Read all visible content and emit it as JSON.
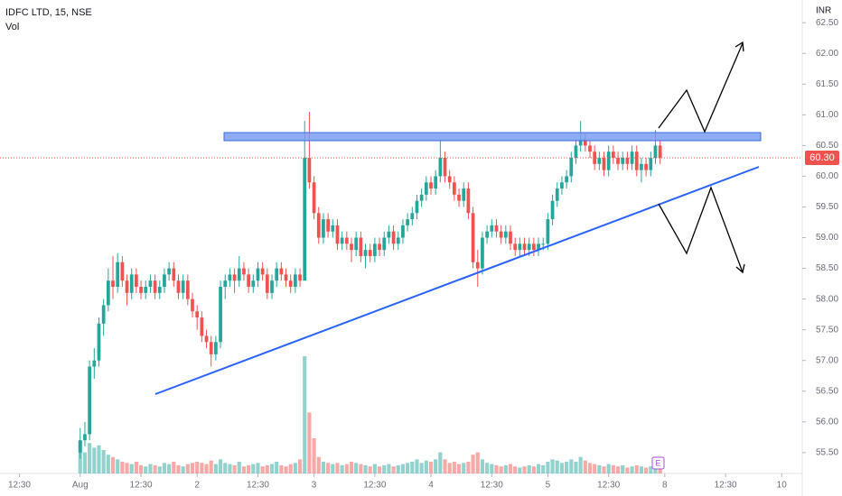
{
  "chart_data": {
    "type": "candlestick",
    "title": "IDFC LTD, 15, NSE",
    "volume_label": "Vol",
    "currency": "INR",
    "event_marker": "E",
    "up_color": "#26a69a",
    "down_color": "#ef5350",
    "ylim": [
      55.16,
      62.87
    ],
    "xlim": [
      -17.15,
      154.4
    ],
    "yticks": [
      {
        "value": 62.5,
        "label": "62.50"
      },
      {
        "value": 62,
        "label": "62.00"
      },
      {
        "value": 61.5,
        "label": "61.50"
      },
      {
        "value": 61,
        "label": "61.00"
      },
      {
        "value": 60.5,
        "label": "60.50"
      },
      {
        "value": 60,
        "label": "60.00"
      },
      {
        "value": 59.5,
        "label": "59.50"
      },
      {
        "value": 59,
        "label": "59.00"
      },
      {
        "value": 58.5,
        "label": "58.50"
      },
      {
        "value": 58,
        "label": "58.00"
      },
      {
        "value": 57.5,
        "label": "57.50"
      },
      {
        "value": 57,
        "label": "57.00"
      },
      {
        "value": 56.5,
        "label": "56.50"
      },
      {
        "value": 56,
        "label": "56.00"
      },
      {
        "value": 55.5,
        "label": "55.50"
      }
    ],
    "xticks": [
      {
        "value": -13,
        "label": "12:30"
      },
      {
        "value": 0,
        "label": "Aug"
      },
      {
        "value": 13,
        "label": "12:30"
      },
      {
        "value": 25,
        "label": "2"
      },
      {
        "value": 38,
        "label": "12:30"
      },
      {
        "value": 50,
        "label": "3"
      },
      {
        "value": 63,
        "label": "12:30"
      },
      {
        "value": 75,
        "label": "4"
      },
      {
        "value": 88,
        "label": "12:30"
      },
      {
        "value": 100,
        "label": "5"
      },
      {
        "value": 113,
        "label": "12:30"
      },
      {
        "value": 125,
        "label": "8"
      },
      {
        "value": 138,
        "label": "12:30"
      },
      {
        "value": 150,
        "label": "10"
      }
    ],
    "last_price": {
      "value": 60.3,
      "label": "60.30"
    },
    "candles": [
      [
        55.5,
        55.9,
        55.4,
        55.7
      ],
      [
        55.7,
        56.0,
        55.6,
        55.8
      ],
      [
        55.8,
        57.0,
        55.7,
        56.9
      ],
      [
        56.9,
        57.2,
        56.7,
        57.0
      ],
      [
        57.0,
        57.7,
        56.9,
        57.6
      ],
      [
        57.6,
        58.0,
        57.4,
        57.9
      ],
      [
        57.9,
        58.5,
        57.8,
        58.3
      ],
      [
        58.3,
        58.7,
        58.0,
        58.2
      ],
      [
        58.2,
        58.75,
        58.1,
        58.6
      ],
      [
        58.6,
        58.7,
        58.2,
        58.3
      ],
      [
        58.3,
        58.4,
        57.9,
        58.1
      ],
      [
        58.1,
        58.5,
        58.0,
        58.4
      ],
      [
        58.4,
        58.5,
        58.1,
        58.2
      ],
      [
        58.2,
        58.3,
        58.0,
        58.1
      ],
      [
        58.1,
        58.3,
        58.0,
        58.2
      ],
      [
        58.2,
        58.4,
        58.1,
        58.3
      ],
      [
        58.3,
        58.4,
        58.0,
        58.1
      ],
      [
        58.1,
        58.3,
        58.0,
        58.2
      ],
      [
        58.2,
        58.5,
        58.1,
        58.4
      ],
      [
        58.4,
        58.6,
        58.3,
        58.5
      ],
      [
        58.5,
        58.6,
        58.2,
        58.3
      ],
      [
        58.3,
        58.4,
        58.0,
        58.1
      ],
      [
        58.1,
        58.4,
        58.0,
        58.3
      ],
      [
        58.3,
        58.4,
        57.9,
        58.0
      ],
      [
        58.0,
        58.1,
        57.7,
        57.8
      ],
      [
        57.8,
        57.9,
        57.5,
        57.7
      ],
      [
        57.7,
        57.8,
        57.3,
        57.4
      ],
      [
        57.4,
        57.5,
        57.2,
        57.3
      ],
      [
        57.3,
        57.4,
        56.9,
        57.1
      ],
      [
        57.1,
        57.4,
        57.0,
        57.3
      ],
      [
        57.3,
        58.3,
        57.2,
        58.2
      ],
      [
        58.2,
        58.4,
        58.0,
        58.3
      ],
      [
        58.3,
        58.5,
        58.2,
        58.4
      ],
      [
        58.4,
        58.5,
        58.1,
        58.3
      ],
      [
        58.3,
        58.7,
        58.2,
        58.5
      ],
      [
        58.5,
        58.6,
        58.3,
        58.4
      ],
      [
        58.4,
        58.5,
        58.1,
        58.2
      ],
      [
        58.2,
        58.4,
        58.1,
        58.3
      ],
      [
        58.3,
        58.6,
        58.2,
        58.5
      ],
      [
        58.5,
        58.6,
        58.3,
        58.4
      ],
      [
        58.4,
        58.5,
        58.0,
        58.1
      ],
      [
        58.1,
        58.4,
        58.0,
        58.3
      ],
      [
        58.3,
        58.6,
        58.2,
        58.5
      ],
      [
        58.5,
        58.6,
        58.3,
        58.4
      ],
      [
        58.4,
        58.5,
        58.2,
        58.3
      ],
      [
        58.3,
        58.4,
        58.1,
        58.2
      ],
      [
        58.2,
        58.5,
        58.1,
        58.4
      ],
      [
        58.4,
        58.5,
        58.2,
        58.3
      ],
      [
        58.3,
        60.9,
        58.3,
        60.3
      ],
      [
        60.3,
        61.05,
        59.8,
        59.9
      ],
      [
        59.9,
        60.0,
        59.3,
        59.4
      ],
      [
        59.4,
        59.5,
        58.9,
        59.0
      ],
      [
        59.0,
        59.4,
        58.9,
        59.3
      ],
      [
        59.3,
        59.4,
        59.0,
        59.1
      ],
      [
        59.1,
        59.3,
        59.0,
        59.2
      ],
      [
        59.2,
        59.3,
        58.8,
        58.9
      ],
      [
        58.9,
        59.1,
        58.8,
        59.0
      ],
      [
        59.0,
        59.1,
        58.8,
        58.9
      ],
      [
        58.9,
        59.0,
        58.6,
        58.8
      ],
      [
        58.8,
        59.1,
        58.7,
        59.0
      ],
      [
        59.0,
        59.1,
        58.6,
        58.7
      ],
      [
        58.7,
        58.9,
        58.5,
        58.8
      ],
      [
        58.8,
        58.9,
        58.6,
        58.7
      ],
      [
        58.7,
        59.0,
        58.6,
        58.9
      ],
      [
        58.9,
        59.0,
        58.7,
        58.8
      ],
      [
        58.8,
        59.1,
        58.7,
        59.0
      ],
      [
        59.0,
        59.2,
        58.9,
        59.1
      ],
      [
        59.1,
        59.2,
        58.8,
        58.9
      ],
      [
        58.9,
        59.1,
        58.8,
        59.0
      ],
      [
        59.0,
        59.3,
        58.9,
        59.2
      ],
      [
        59.2,
        59.4,
        59.1,
        59.3
      ],
      [
        59.3,
        59.5,
        59.2,
        59.4
      ],
      [
        59.4,
        59.7,
        59.3,
        59.6
      ],
      [
        59.6,
        59.8,
        59.5,
        59.7
      ],
      [
        59.7,
        60.0,
        59.6,
        59.9
      ],
      [
        59.9,
        60.0,
        59.7,
        59.8
      ],
      [
        59.8,
        60.1,
        59.7,
        60.0
      ],
      [
        60.0,
        60.6,
        59.9,
        60.3
      ],
      [
        60.3,
        60.4,
        59.9,
        60.0
      ],
      [
        60.0,
        60.1,
        59.8,
        59.9
      ],
      [
        59.9,
        60.0,
        59.6,
        59.7
      ],
      [
        59.7,
        59.8,
        59.5,
        59.6
      ],
      [
        59.6,
        59.9,
        59.5,
        59.8
      ],
      [
        59.8,
        59.9,
        59.3,
        59.4
      ],
      [
        59.4,
        59.5,
        58.5,
        58.6
      ],
      [
        58.6,
        58.8,
        58.2,
        58.5
      ],
      [
        58.5,
        59.1,
        58.4,
        59.0
      ],
      [
        59.0,
        59.2,
        58.9,
        59.1
      ],
      [
        59.1,
        59.3,
        59.0,
        59.2
      ],
      [
        59.2,
        59.3,
        59.0,
        59.1
      ],
      [
        59.1,
        59.2,
        58.9,
        59.0
      ],
      [
        59.0,
        59.2,
        58.9,
        59.1
      ],
      [
        59.1,
        59.2,
        58.8,
        58.9
      ],
      [
        58.9,
        59.0,
        58.7,
        58.8
      ],
      [
        58.8,
        59.0,
        58.7,
        58.9
      ],
      [
        58.9,
        59.0,
        58.7,
        58.8
      ],
      [
        58.8,
        59.0,
        58.7,
        58.9
      ],
      [
        58.9,
        59.0,
        58.7,
        58.8
      ],
      [
        58.8,
        59.0,
        58.7,
        58.9
      ],
      [
        58.9,
        59.0,
        58.8,
        58.9
      ],
      [
        58.9,
        59.4,
        58.8,
        59.3
      ],
      [
        59.3,
        59.7,
        59.2,
        59.6
      ],
      [
        59.6,
        59.9,
        59.5,
        59.8
      ],
      [
        59.8,
        60.0,
        59.7,
        59.9
      ],
      [
        59.9,
        60.1,
        59.8,
        60.0
      ],
      [
        60.0,
        60.4,
        59.9,
        60.3
      ],
      [
        60.3,
        60.6,
        60.2,
        60.5
      ],
      [
        60.5,
        60.9,
        60.4,
        60.6
      ],
      [
        60.6,
        60.7,
        60.4,
        60.5
      ],
      [
        60.5,
        60.6,
        60.3,
        60.4
      ],
      [
        60.4,
        60.5,
        60.1,
        60.2
      ],
      [
        60.2,
        60.4,
        60.1,
        60.3
      ],
      [
        60.3,
        60.4,
        60.0,
        60.1
      ],
      [
        60.1,
        60.5,
        60.0,
        60.4
      ],
      [
        60.4,
        60.5,
        60.2,
        60.3
      ],
      [
        60.3,
        60.4,
        60.1,
        60.2
      ],
      [
        60.2,
        60.4,
        60.1,
        60.3
      ],
      [
        60.3,
        60.4,
        60.1,
        60.2
      ],
      [
        60.2,
        60.5,
        60.1,
        60.4
      ],
      [
        60.4,
        60.5,
        60.0,
        60.1
      ],
      [
        60.1,
        60.3,
        59.9,
        60.2
      ],
      [
        60.2,
        60.3,
        60.0,
        60.1
      ],
      [
        60.1,
        60.4,
        60.0,
        60.3
      ],
      [
        60.3,
        60.75,
        60.2,
        60.5
      ],
      [
        60.5,
        60.6,
        60.2,
        60.3
      ]
    ],
    "volumes": [
      28,
      18,
      26,
      22,
      24,
      20,
      16,
      14,
      12,
      10,
      9,
      8,
      10,
      7,
      6,
      8,
      7,
      6,
      9,
      8,
      10,
      7,
      6,
      8,
      9,
      10,
      9,
      8,
      11,
      8,
      12,
      9,
      8,
      7,
      10,
      6,
      7,
      8,
      9,
      6,
      7,
      8,
      10,
      7,
      6,
      8,
      9,
      12,
      100,
      52,
      30,
      14,
      10,
      9,
      8,
      9,
      7,
      8,
      10,
      9,
      8,
      7,
      6,
      8,
      6,
      7,
      8,
      6,
      7,
      8,
      9,
      10,
      12,
      9,
      11,
      10,
      12,
      18,
      12,
      9,
      10,
      8,
      9,
      10,
      16,
      18,
      12,
      9,
      8,
      7,
      6,
      7,
      8,
      6,
      5,
      6,
      7,
      6,
      8,
      7,
      10,
      12,
      11,
      9,
      10,
      12,
      10,
      14,
      11,
      9,
      8,
      7,
      6,
      8,
      7,
      6,
      7,
      5,
      6,
      7,
      6,
      5,
      6,
      8,
      7
    ]
  }
}
